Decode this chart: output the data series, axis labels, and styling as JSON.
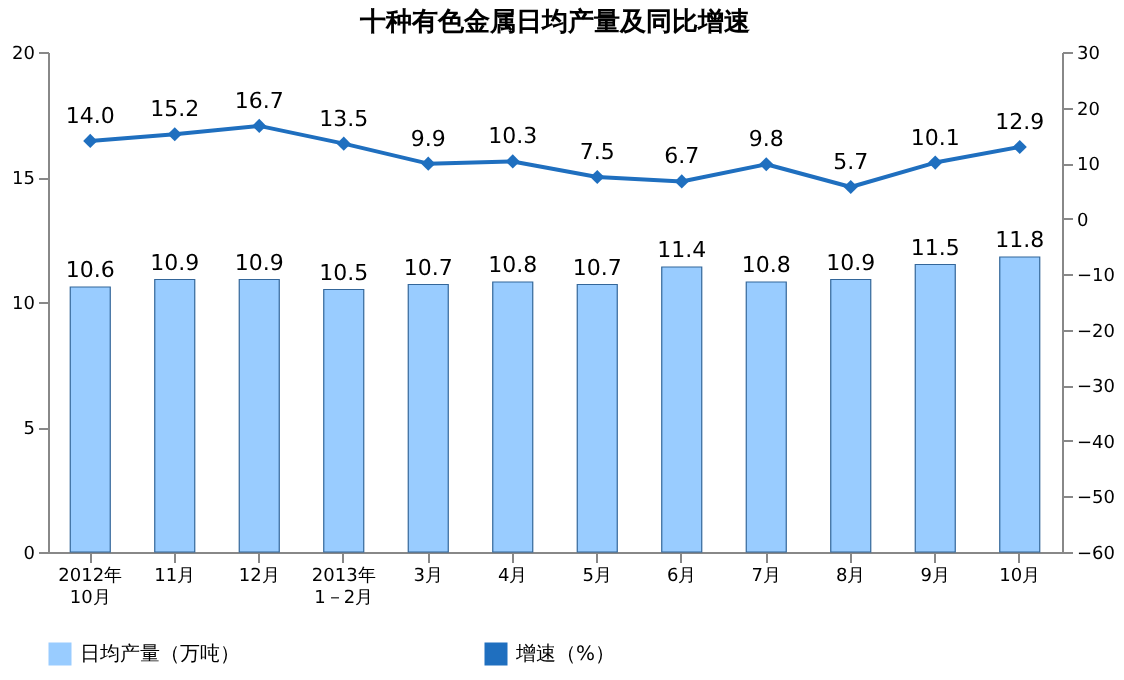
{
  "chart_data": {
    "type": "bar",
    "title": "十种有色金属日均产量及同比增速",
    "categories": [
      "2012年\n10月",
      "11月",
      "12月",
      "2013年\n1－2月",
      "3月",
      "4月",
      "5月",
      "6月",
      "7月",
      "8月",
      "9月",
      "10月"
    ],
    "series": [
      {
        "name": "日均产量（万吨）",
        "color": "#99ccff",
        "values": [
          10.6,
          10.9,
          10.9,
          10.5,
          10.7,
          10.8,
          10.7,
          11.4,
          10.8,
          10.9,
          11.5,
          11.8
        ],
        "value_labels": [
          "10.6",
          "10.9",
          "10.9",
          "10.5",
          "10.7",
          "10.8",
          "10.7",
          "11.4",
          "10.8",
          "10.9",
          "11.5",
          "11.8"
        ]
      },
      {
        "name": "增速（%）",
        "type": "line",
        "axis": "y2",
        "color": "#1f6fbf",
        "marker": "diamond",
        "values": [
          14.0,
          15.2,
          16.7,
          13.5,
          9.9,
          10.3,
          7.5,
          6.7,
          9.8,
          5.7,
          10.1,
          12.9
        ],
        "value_labels": [
          "14.0",
          "15.2",
          "16.7",
          "13.5",
          "9.9",
          "10.3",
          "7.5",
          "6.7",
          "9.8",
          "5.7",
          "10.1",
          "12.9"
        ]
      }
    ],
    "ylim": [
      0,
      20
    ],
    "yticks": [
      0,
      5,
      10,
      15,
      20
    ],
    "y2lim": [
      -60,
      30
    ],
    "y2ticks": [
      -60,
      -50,
      -40,
      -30,
      -20,
      -10,
      0,
      10,
      20,
      30
    ],
    "legend": "bottom"
  }
}
